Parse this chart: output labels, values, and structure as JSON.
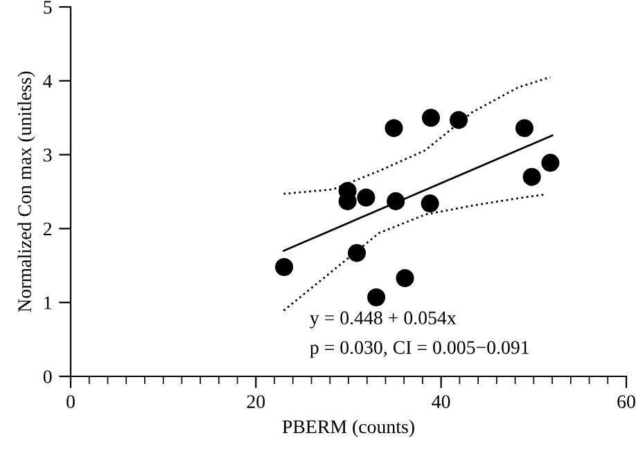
{
  "chart_data": {
    "type": "scatter",
    "xlabel": "PBERM (counts)",
    "ylabel": "Normalized Con max (unitless)",
    "xlim": [
      0,
      60
    ],
    "xticks": [
      0,
      20,
      40,
      60
    ],
    "ylim": [
      0,
      5
    ],
    "yticks": [
      0,
      1,
      2,
      3,
      4,
      5
    ],
    "grid": false,
    "series": [
      {
        "color": "#000000",
        "marker": "circle",
        "x": [
          23.05,
          29.9,
          29.9,
          31.9,
          30.9,
          33.0,
          34.9,
          35.1,
          36.1,
          38.9,
          38.8,
          41.9,
          49.0,
          49.8,
          51.8
        ],
        "values": [
          1.48,
          2.51,
          2.37,
          2.42,
          1.67,
          1.07,
          3.36,
          2.37,
          1.33,
          3.5,
          2.34,
          3.47,
          3.36,
          2.7,
          2.89
        ]
      },
      {
        "type": "line",
        "color": "#000000",
        "line_style": "solid",
        "marker": "none",
        "x": [
          23,
          52
        ],
        "values": [
          1.7,
          3.26
        ]
      },
      {
        "type": "line",
        "color": "#000000",
        "line_style": "dotted",
        "marker": "none",
        "x": [
          23,
          28.3,
          33.3,
          38.3,
          43.3,
          48.3,
          51.8
        ],
        "values": [
          2.47,
          2.53,
          2.78,
          3.06,
          3.57,
          3.91,
          4.05
        ]
      },
      {
        "type": "line",
        "color": "#000000",
        "line_style": "dotted",
        "marker": "none",
        "x": [
          23,
          28.3,
          33.3,
          38.3,
          43.3,
          48.3,
          51.1
        ],
        "values": [
          0.89,
          1.43,
          1.94,
          2.19,
          2.31,
          2.41,
          2.46
        ]
      }
    ],
    "annotations": [
      "y = 0.448 + 0.054x",
      "p = 0.030, CI = 0.005−0.091"
    ]
  }
}
